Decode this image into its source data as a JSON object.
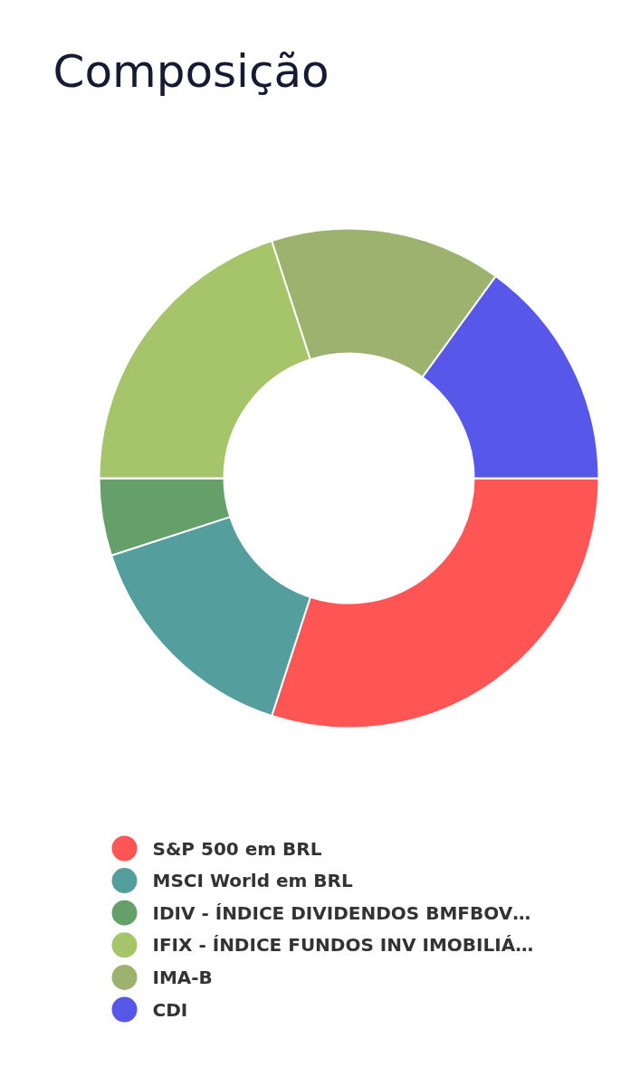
{
  "chart_data": {
    "type": "donut",
    "title": "Composição",
    "categories": [
      "S&P 500 em BRL",
      "MSCI World em BRL",
      "IDIV - ÍNDICE DIVIDENDOS BMFBOV…",
      "IFIX - ÍNDICE FUNDOS INV IMOBILIÁ…",
      "IMA-B",
      "CDI"
    ],
    "values": [
      30,
      15,
      5,
      20,
      15,
      15
    ],
    "colors": [
      "#ff5555",
      "#559e9e",
      "#65a06a",
      "#a6c46a",
      "#9db26f",
      "#5757ea"
    ],
    "legend": "bottom"
  }
}
